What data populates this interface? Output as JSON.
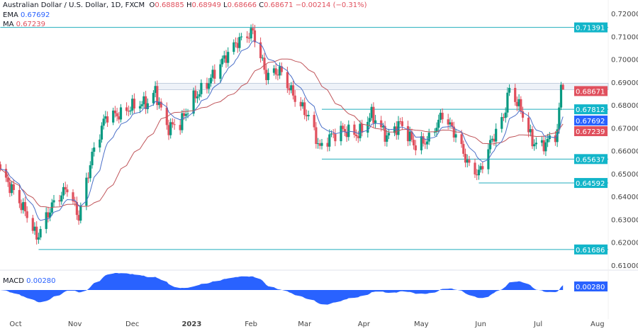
{
  "header": {
    "symbol": "Australian Dollar / U.S. Dollar, 1D, FXCM",
    "open_label": "O",
    "open": "0.68885",
    "high_label": "H",
    "high": "0.68949",
    "low_label": "L",
    "low": "0.68666",
    "close_label": "C",
    "close": "0.68671",
    "change": "−0.00214 (−0.31%)"
  },
  "indicators": {
    "ema_label": "EMA",
    "ema_value": "0.67692",
    "ma_label": "MA",
    "ma_value": "0.67239",
    "macd_label": "MACD",
    "macd_value": "0.00280"
  },
  "colors": {
    "up": "#089981",
    "down": "#e0505d",
    "ema": "#4a6fc8",
    "ma": "#c0555a",
    "level_line": "#22aebd",
    "level_label": "#12b5c9",
    "macd": "#2962ff"
  },
  "chart_data": {
    "type": "candlestick",
    "title": "Australian Dollar / U.S. Dollar, 1D, FXCM",
    "ylim": [
      0.605,
      0.722
    ],
    "y_ticks": [
      "0.72000",
      "0.71000",
      "0.70000",
      "0.69000",
      "0.68000",
      "0.67000",
      "0.66000",
      "0.65000",
      "0.64000",
      "0.63000",
      "0.62000",
      "0.61000"
    ],
    "x_ticks": [
      "Oct",
      "Nov",
      "Dec",
      "2023",
      "Feb",
      "Mar",
      "Apr",
      "May",
      "Jun",
      "Jul",
      "Aug"
    ],
    "close_path": [
      [
        "2022-09-23",
        0.651
      ],
      [
        "2022-09-30",
        0.642
      ],
      [
        "2022-10-07",
        0.632
      ],
      [
        "2022-10-12",
        0.622
      ],
      [
        "2022-10-20",
        0.636
      ],
      [
        "2022-10-28",
        0.644
      ],
      [
        "2022-11-03",
        0.631
      ],
      [
        "2022-11-10",
        0.658
      ],
      [
        "2022-11-17",
        0.675
      ],
      [
        "2022-11-25",
        0.676
      ],
      [
        "2022-12-02",
        0.68
      ],
      [
        "2022-12-09",
        0.681
      ],
      [
        "2022-12-13",
        0.686
      ],
      [
        "2022-12-19",
        0.67
      ],
      [
        "2022-12-26",
        0.672
      ],
      [
        "2023-01-02",
        0.683
      ],
      [
        "2023-01-09",
        0.689
      ],
      [
        "2023-01-16",
        0.698
      ],
      [
        "2023-01-24",
        0.707
      ],
      [
        "2023-02-02",
        0.712
      ],
      [
        "2023-02-06",
        0.701
      ],
      [
        "2023-02-09",
        0.693
      ],
      [
        "2023-02-16",
        0.695
      ],
      [
        "2023-02-24",
        0.683
      ],
      [
        "2023-03-03",
        0.675
      ],
      [
        "2023-03-09",
        0.661
      ],
      [
        "2023-03-14",
        0.666
      ],
      [
        "2023-03-21",
        0.669
      ],
      [
        "2023-03-29",
        0.667
      ],
      [
        "2023-04-05",
        0.676
      ],
      [
        "2023-04-13",
        0.666
      ],
      [
        "2023-04-20",
        0.672
      ],
      [
        "2023-04-28",
        0.662
      ],
      [
        "2023-05-05",
        0.665
      ],
      [
        "2023-05-12",
        0.676
      ],
      [
        "2023-05-19",
        0.667
      ],
      [
        "2023-05-26",
        0.653
      ],
      [
        "2023-05-31",
        0.65
      ],
      [
        "2023-06-07",
        0.665
      ],
      [
        "2023-06-13",
        0.675
      ],
      [
        "2023-06-16",
        0.687
      ],
      [
        "2023-06-22",
        0.678
      ],
      [
        "2023-06-28",
        0.664
      ],
      [
        "2023-07-03",
        0.662
      ],
      [
        "2023-07-07",
        0.665
      ],
      [
        "2023-07-11",
        0.668
      ],
      [
        "2023-07-12",
        0.678
      ],
      [
        "2023-07-13",
        0.68885
      ]
    ],
    "last_candle": {
      "date": "2023-07-14",
      "open": 0.68885,
      "high": 0.68949,
      "low": 0.68666,
      "close": 0.68671
    },
    "levels": [
      {
        "value": "0.71391",
        "from": "2022-09-23"
      },
      {
        "value": "0.67812",
        "from": "2023-03-10"
      },
      {
        "value": "0.65637",
        "from": "2023-03-10"
      },
      {
        "value": "0.64592",
        "from": "2023-05-31"
      },
      {
        "value": "0.61686",
        "from": "2022-10-13"
      }
    ],
    "current_price": "0.68671",
    "resistance_band": {
      "top": 0.6895,
      "bottom": 0.68671,
      "from": "2022-12-13"
    },
    "ema_label": "0.67692",
    "ma_label": "0.67239",
    "macd_label": "0.00280"
  }
}
